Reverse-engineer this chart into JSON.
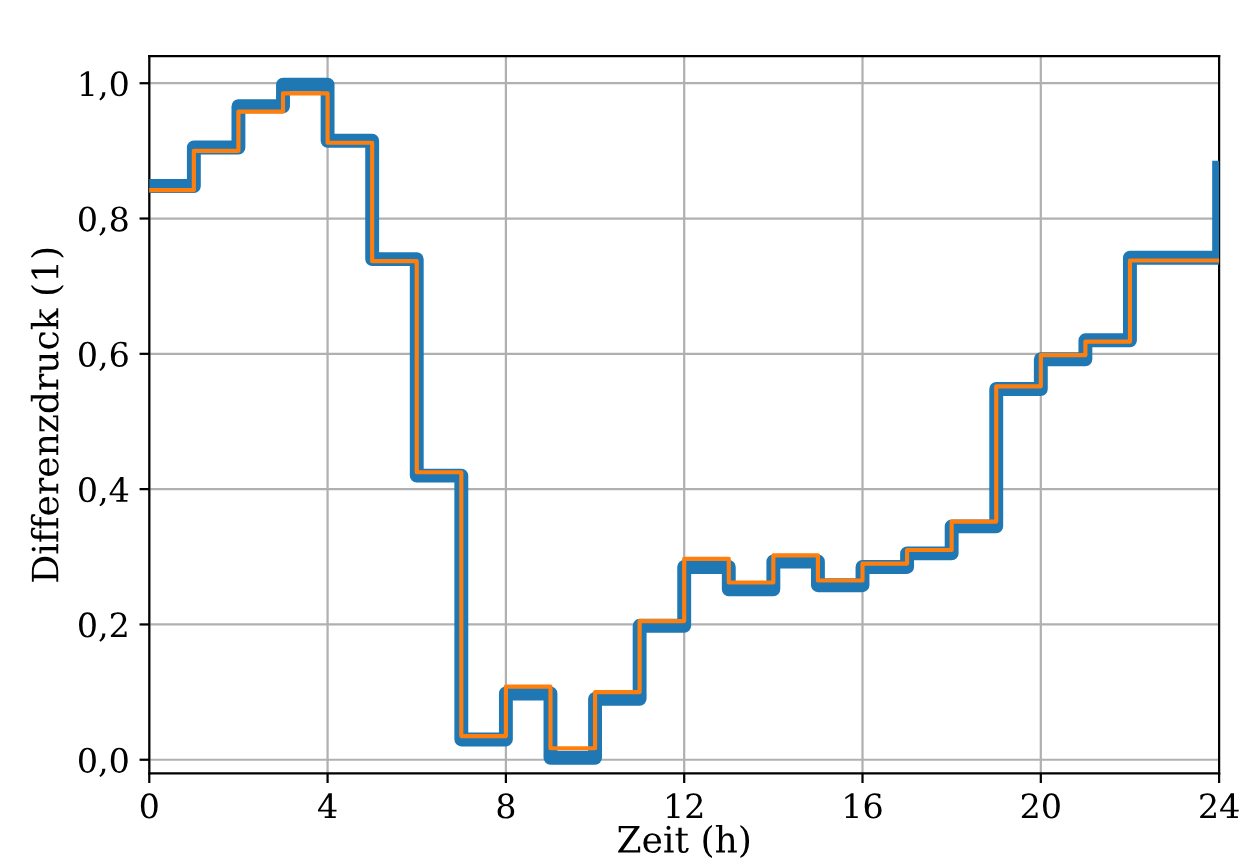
{
  "chart_data": {
    "type": "step",
    "xlabel": "Zeit (h)",
    "ylabel": "Differenzdruck (1)",
    "x": [
      0,
      1,
      2,
      3,
      4,
      5,
      6,
      7,
      8,
      9,
      10,
      11,
      12,
      13,
      14,
      15,
      16,
      17,
      18,
      19,
      20,
      21,
      22,
      23,
      24
    ],
    "series": [
      {
        "color": "#1f77b4",
        "values": [
          0.848,
          0.905,
          0.966,
          0.998,
          0.915,
          0.74,
          0.42,
          0.03,
          0.098,
          0.003,
          0.09,
          0.198,
          0.285,
          0.252,
          0.293,
          0.258,
          0.285,
          0.305,
          0.345,
          0.548,
          0.592,
          0.62,
          0.742,
          0.742,
          0.875
        ]
      },
      {
        "color": "#ff7f0e",
        "values": [
          0.842,
          0.9,
          0.958,
          0.985,
          0.912,
          0.737,
          0.425,
          0.035,
          0.108,
          0.017,
          0.1,
          0.205,
          0.297,
          0.262,
          0.302,
          0.265,
          0.29,
          0.31,
          0.352,
          0.552,
          0.598,
          0.618,
          0.738,
          0.738,
          0.738
        ]
      }
    ],
    "xlim": [
      0,
      24
    ],
    "xticks": [
      0,
      4,
      8,
      12,
      16,
      20,
      24
    ],
    "ylim": [
      -0.02,
      1.04
    ],
    "yticks": [
      {
        "value": 0,
        "label": "0,0"
      },
      {
        "value": 0.2,
        "label": "0,2"
      },
      {
        "value": 0.4,
        "label": "0,4"
      },
      {
        "value": 0.6,
        "label": "0,6"
      },
      {
        "value": 0.8,
        "label": "0,8"
      },
      {
        "value": 1.0,
        "label": "1,0"
      }
    ],
    "grid": true
  }
}
